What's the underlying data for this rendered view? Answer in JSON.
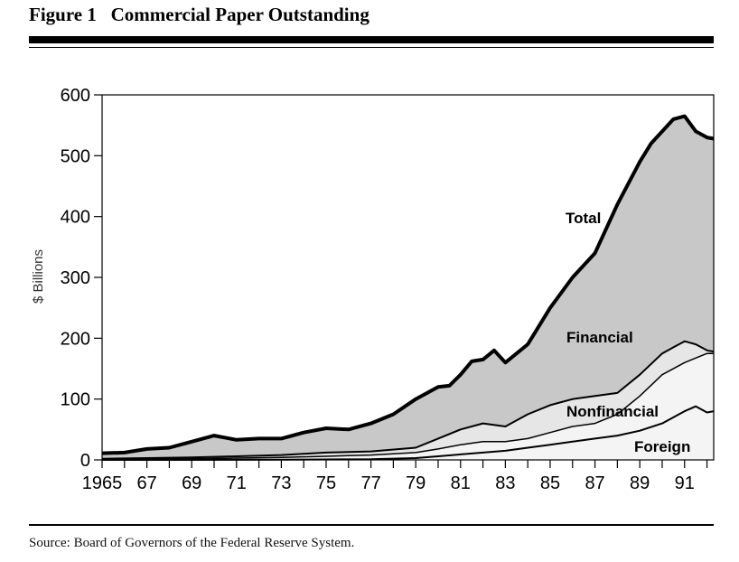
{
  "header": {
    "title": "Figure 1   Commercial Paper Outstanding"
  },
  "footer": {
    "source": "Source: Board of Governors of the Federal Reserve System."
  },
  "colors": {
    "total_fill": "#c8c8c8",
    "financial_fill": "#e6e6e6",
    "nonfinancial_fill": "#f4f4f4",
    "line": "#000000"
  },
  "chart_data": {
    "type": "area",
    "title": "",
    "xlabel": "",
    "ylabel": "$ Billions",
    "xlim": [
      1965,
      1992.3
    ],
    "ylim": [
      0,
      600
    ],
    "yticks": [
      0,
      100,
      200,
      300,
      400,
      500,
      600
    ],
    "ytick_labels": [
      "0",
      "100",
      "200",
      "300",
      "400",
      "500",
      "600"
    ],
    "xticks": [
      1965,
      1967,
      1969,
      1971,
      1973,
      1975,
      1977,
      1979,
      1981,
      1983,
      1985,
      1987,
      1989,
      1991
    ],
    "xtick_labels": [
      "1965",
      "67",
      "69",
      "71",
      "73",
      "75",
      "77",
      "79",
      "81",
      "83",
      "85",
      "87",
      "89",
      "91"
    ],
    "grid": false,
    "annotations": [
      "Total",
      "Financial",
      "Nonfinancial",
      "Foreign"
    ],
    "series": [
      {
        "name": "Total",
        "x": [
          1965,
          1966,
          1967,
          1968,
          1969,
          1969.8,
          1970,
          1971,
          1972,
          1973,
          1974,
          1975,
          1976,
          1977,
          1978,
          1979,
          1980,
          1980.5,
          1981,
          1981.5,
          1982,
          1982.5,
          1983,
          1984,
          1985,
          1986,
          1987,
          1988,
          1989,
          1989.5,
          1990,
          1990.5,
          1991,
          1991.5,
          1992,
          1992.3
        ],
        "values": [
          11,
          12,
          18,
          20,
          30,
          38,
          40,
          33,
          35,
          35,
          45,
          52,
          50,
          60,
          75,
          100,
          120,
          122,
          140,
          162,
          165,
          180,
          160,
          190,
          250,
          300,
          340,
          420,
          490,
          520,
          540,
          560,
          565,
          540,
          530,
          528
        ]
      },
      {
        "name": "Nonfinancial",
        "x": [
          1965,
          1967,
          1969,
          1971,
          1973,
          1975,
          1977,
          1979,
          1980,
          1981,
          1982,
          1983,
          1984,
          1985,
          1986,
          1987,
          1988,
          1989,
          1990,
          1990.5,
          1991,
          1991.5,
          1992,
          1992.3
        ],
        "values": [
          2,
          3,
          4,
          6,
          8,
          12,
          14,
          20,
          35,
          50,
          60,
          55,
          75,
          90,
          100,
          105,
          110,
          140,
          175,
          185,
          195,
          190,
          180,
          178
        ]
      },
      {
        "name": "Financial",
        "x": [
          1965,
          1967,
          1969,
          1971,
          1973,
          1975,
          1977,
          1979,
          1980,
          1981,
          1982,
          1983,
          1984,
          1985,
          1986,
          1987,
          1988,
          1989,
          1990,
          1991,
          1992,
          1992.3
        ],
        "values": [
          1,
          1,
          2,
          3,
          4,
          6,
          8,
          12,
          18,
          25,
          30,
          30,
          35,
          45,
          55,
          60,
          75,
          105,
          140,
          160,
          175,
          175
        ]
      },
      {
        "name": "Foreign",
        "x": [
          1965,
          1969,
          1973,
          1977,
          1979,
          1980,
          1981,
          1982,
          1983,
          1984,
          1985,
          1986,
          1987,
          1988,
          1989,
          1990,
          1991,
          1991.5,
          1992,
          1992.3
        ],
        "values": [
          0,
          0,
          0.5,
          1,
          3,
          6,
          9,
          12,
          15,
          20,
          25,
          30,
          35,
          40,
          48,
          60,
          80,
          88,
          78,
          80
        ]
      }
    ]
  }
}
